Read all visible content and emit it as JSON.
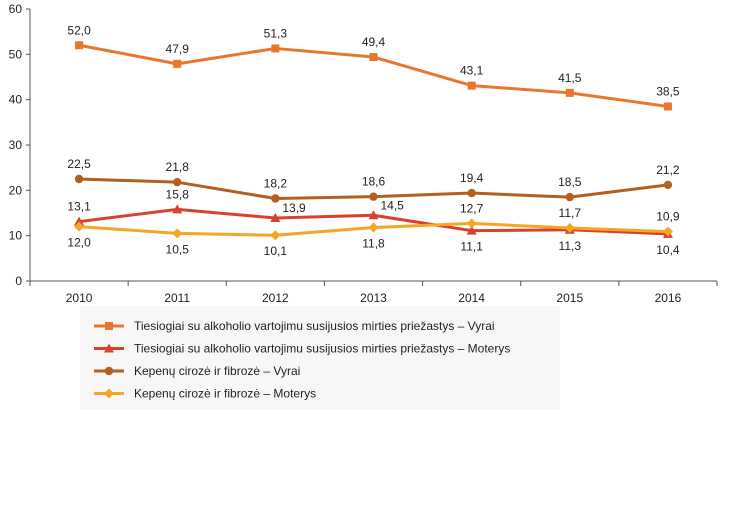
{
  "chart_data": {
    "type": "line",
    "title": "",
    "xlabel": "",
    "ylabel": "",
    "x": [
      "2010",
      "2011",
      "2012",
      "2013",
      "2014",
      "2015",
      "2016"
    ],
    "y_ticks": [
      "0",
      "10",
      "20",
      "30",
      "40",
      "50",
      "60"
    ],
    "ylim": [
      0,
      60
    ],
    "grid": false,
    "legend_position": "bottom",
    "series": [
      {
        "name": "Tiesiogiai su alkoholio vartojimu susijusios mirties priežastys – Vyrai",
        "values": [
          52.0,
          47.9,
          51.3,
          49.4,
          43.1,
          41.5,
          38.5
        ],
        "labels": [
          "52,0",
          "47,9",
          "51,3",
          "49,4",
          "43,1",
          "41,5",
          "38,5"
        ],
        "label_side": [
          "above",
          "above",
          "above",
          "above",
          "above",
          "above",
          "above"
        ],
        "color": "#E8772E",
        "marker": "square"
      },
      {
        "name": "Tiesiogiai su alkoholio vartojimu susijusios mirties priežastys – Moterys",
        "values": [
          13.1,
          15.8,
          13.9,
          14.5,
          11.1,
          11.3,
          10.4
        ],
        "labels": [
          "13,1",
          "15,8",
          "13,9",
          "14,5",
          "11,1",
          "11,3",
          "10,4"
        ],
        "label_side": [
          "above",
          "above",
          "right",
          "right",
          "below",
          "below",
          "below"
        ],
        "color": "#D9412B",
        "marker": "triangle"
      },
      {
        "name": "Kepenų cirozė ir fibrozė – Vyrai",
        "values": [
          22.5,
          21.8,
          18.2,
          18.6,
          19.4,
          18.5,
          21.2
        ],
        "labels": [
          "22,5",
          "21,8",
          "18,2",
          "18,6",
          "19,4",
          "18,5",
          "21,2"
        ],
        "label_side": [
          "above",
          "above",
          "above",
          "above",
          "above",
          "above",
          "above"
        ],
        "color": "#B35F1F",
        "marker": "circle"
      },
      {
        "name": "Kepenų cirozė ir fibrozė – Moterys",
        "values": [
          12.0,
          10.5,
          10.1,
          11.8,
          12.7,
          11.7,
          10.9
        ],
        "labels": [
          "12,0",
          "10,5",
          "10,1",
          "11,8",
          "12,7",
          "11,7",
          "10,9"
        ],
        "label_side": [
          "below",
          "below",
          "below",
          "below",
          "above",
          "above",
          "above"
        ],
        "color": "#F5A623",
        "marker": "diamond"
      }
    ]
  }
}
